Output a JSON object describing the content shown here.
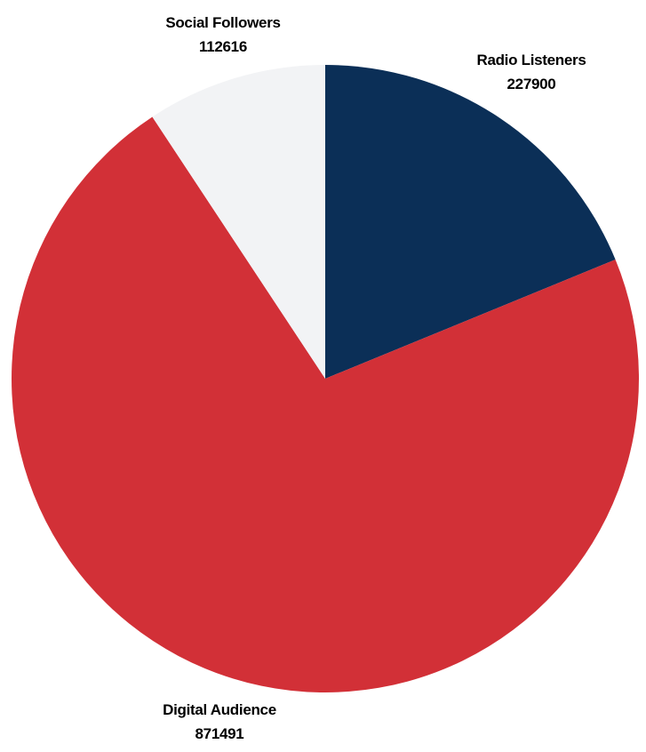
{
  "chart_data": {
    "type": "pie",
    "start_angle": "12 o'clock",
    "direction": "clockwise",
    "slices": [
      {
        "label": "Radio Listeners",
        "value": 227900,
        "color": "#0b2f57"
      },
      {
        "label": "Digital Audience",
        "value": 871491,
        "color": "#d23037"
      },
      {
        "label": "Social Followers",
        "value": 112616,
        "color": "#f2f3f5"
      }
    ]
  }
}
